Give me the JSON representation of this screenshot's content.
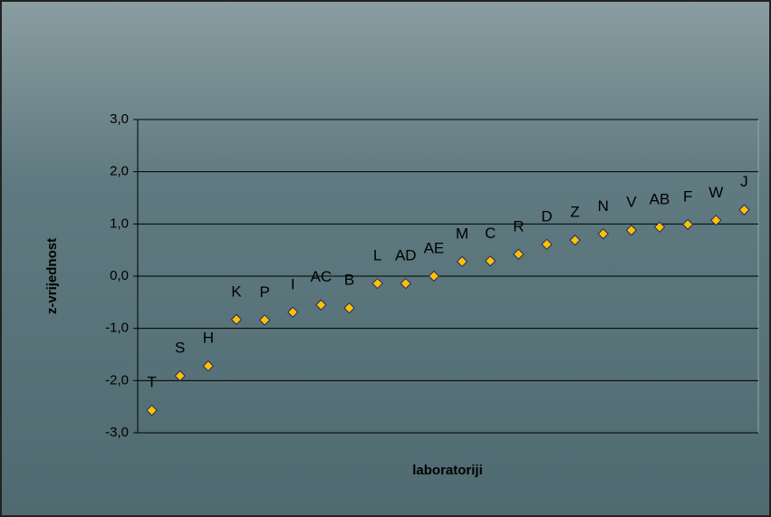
{
  "chart_data": {
    "type": "scatter",
    "x_label": "laboratoriji",
    "y_label": "z-vrijednost",
    "categories": [
      "T",
      "S",
      "H",
      "K",
      "P",
      "I",
      "AC",
      "B",
      "L",
      "AD",
      "AE",
      "M",
      "C",
      "R",
      "D",
      "Z",
      "N",
      "V",
      "AB",
      "F",
      "W",
      "J"
    ],
    "values": [
      -2.57,
      -1.91,
      -1.72,
      -0.83,
      -0.84,
      -0.69,
      -0.55,
      -0.61,
      -0.14,
      -0.14,
      0.0,
      0.28,
      0.29,
      0.42,
      0.61,
      0.69,
      0.81,
      0.88,
      0.94,
      0.99,
      1.07,
      1.27
    ],
    "color": "#ffc000",
    "ylim": [
      -3,
      3
    ],
    "yticks": [
      {
        "value": -3,
        "label": "-3,0"
      },
      {
        "value": -2,
        "label": "-2,0"
      },
      {
        "value": -1,
        "label": "-1,0"
      },
      {
        "value": 0,
        "label": "0,0"
      },
      {
        "value": 1,
        "label": "1,0"
      },
      {
        "value": 2,
        "label": "2,0"
      },
      {
        "value": 3,
        "label": "3,0"
      }
    ],
    "grid": true
  }
}
